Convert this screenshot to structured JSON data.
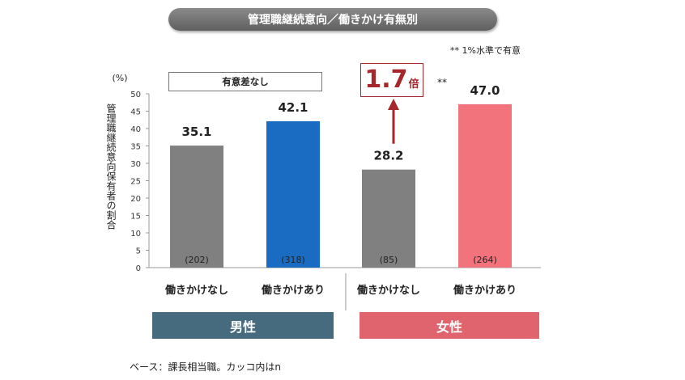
{
  "chart_data": {
    "type": "bar",
    "title": "管理職継続意向／働きかけ有無別",
    "unit_label": "(%)",
    "ylabel": "管理職継続意向保有者の割合",
    "ylim": [
      0,
      50
    ],
    "yticks": [
      0,
      5,
      10,
      15,
      20,
      25,
      30,
      35,
      40,
      45,
      50
    ],
    "categories": [
      "働きかけなし",
      "働きかけあり",
      "働きかけなし",
      "働きかけあり"
    ],
    "groups": [
      "男性",
      "女性"
    ],
    "values": [
      35.1,
      42.1,
      28.2,
      47.0
    ],
    "value_labels": [
      "35.1",
      "42.1",
      "28.2",
      "47.0"
    ],
    "n_labels": [
      "(202)",
      "(318)",
      "(85)",
      "(264)"
    ],
    "bar_colors": [
      "#808080",
      "#1a6cc3",
      "#808080",
      "#f2737b"
    ],
    "annotations": {
      "significance_note": "** 1%水準で有意",
      "male_comparison": "有意差なし",
      "female_ratio_value": "1.7",
      "female_ratio_unit": "倍",
      "female_ratio_stars": "**"
    },
    "footer": "ベース：課長相当職。カッコ内はn"
  },
  "colors": {
    "male_band": "#466b7f",
    "female_band": "#e0646e",
    "ratio_red": "#a5262b"
  }
}
